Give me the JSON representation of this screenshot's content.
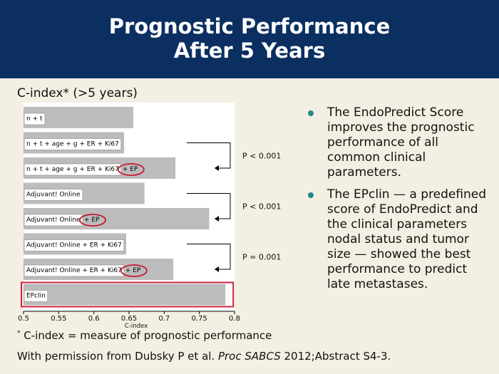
{
  "header": {
    "title_line1": "Prognostic Performance",
    "title_line2": "After 5 Years"
  },
  "subtitle": "C-index* (>5 years)",
  "chart_data": {
    "type": "bar",
    "orientation": "horizontal",
    "categories": [
      "n + t",
      "n + t + age + g + ER + Ki67",
      "n + t + age + g + ER + Ki67 + EP",
      "Adjuvant! Online",
      "Adjuvant! Online + EP",
      "Adjuvant! Online + ER + Ki67",
      "Adjuvant! Online + ER + Ki67 + EP",
      "EPclin"
    ],
    "label_base": [
      "n + t",
      "n + t + age + g + ER + Ki67",
      "n + t + age + g + ER + Ki67",
      "Adjuvant! Online",
      "Adjuvant! Online",
      "Adjuvant! Online + ER + Ki67",
      "Adjuvant! Online + ER + Ki67",
      "EPclin"
    ],
    "ep_suffix": "+ EP",
    "ep_flags": [
      false,
      false,
      true,
      false,
      true,
      false,
      true,
      false
    ],
    "values": [
      0.656,
      0.643,
      0.716,
      0.672,
      0.764,
      0.646,
      0.713,
      0.787
    ],
    "xlim": [
      0.5,
      0.8
    ],
    "xticks": [
      "0.5",
      "0.55",
      "0.6",
      "0.65",
      "0.7",
      "0.75",
      "0.8"
    ],
    "xlabel": "C-index",
    "highlight_index": 7,
    "comparisons": [
      {
        "from": 1,
        "to": 2,
        "label": "P < 0.001"
      },
      {
        "from": 3,
        "to": 4,
        "label": "P < 0.001"
      },
      {
        "from": 5,
        "to": 6,
        "label": "P = 0.001"
      }
    ],
    "colors": {
      "bar": "#bcbcbc",
      "highlight": "#d0243b",
      "ep_circle": "#c4192f"
    }
  },
  "bullets": [
    "The EndoPredict Score improves the prognostic performance of all common clinical parameters.",
    "The EPclin — a predefined score of EndoPredict and the clinical parameters nodal status and tumor size — showed the best performance to predict late metastases."
  ],
  "footnote": {
    "marker": "*",
    "text": " C-index = measure of prognostic performance"
  },
  "credit": {
    "prefix": "With permission from Dubsky P et al. ",
    "journal": "Proc SABCS",
    "suffix": " 2012;Abstract S4-3."
  }
}
